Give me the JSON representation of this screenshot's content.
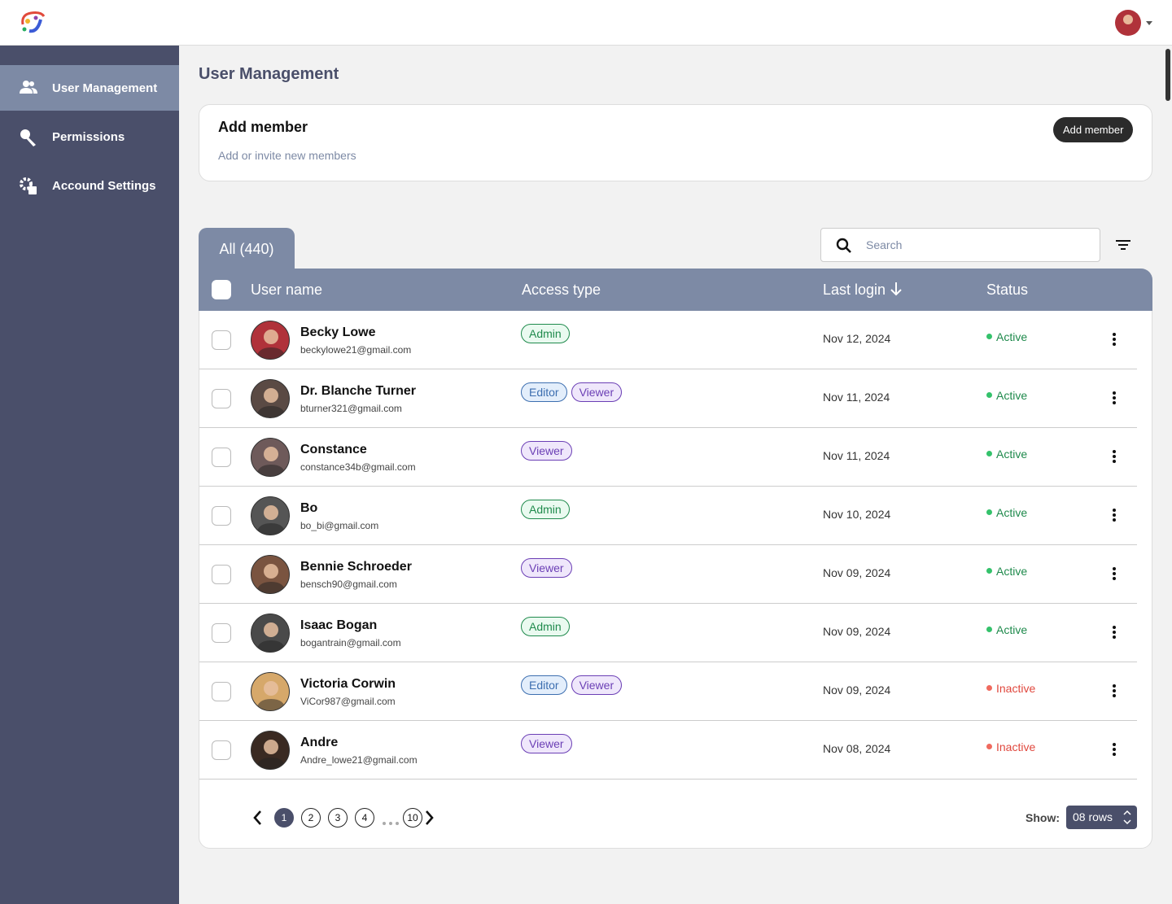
{
  "header": {
    "logo": "app-logo"
  },
  "nav": {
    "items": [
      {
        "label": "User Management",
        "active": true
      },
      {
        "label": "Permissions",
        "active": false
      },
      {
        "label": "Accound Settings",
        "active": false
      }
    ]
  },
  "page": {
    "title": "User Management"
  },
  "add_member": {
    "title": "Add member",
    "subtitle": "Add or invite new members",
    "button": "Add member"
  },
  "tab": {
    "label": "All (440)"
  },
  "search": {
    "placeholder": "Search"
  },
  "table": {
    "headers": [
      "User name",
      "Access type",
      "Last login",
      "Status"
    ],
    "rows": [
      {
        "name": "Becky Lowe",
        "email": "beckylowe21@gmail.com",
        "avatar_color": "#b0323a",
        "roles": [
          {
            "label": "Admin",
            "color": "#1f8a4c",
            "bg": "#eafaf0"
          }
        ],
        "last_login": "Nov 12, 2024",
        "status": "Active",
        "status_color": "#1f8a4c",
        "dot_color": "#34c26b"
      },
      {
        "name": "Dr. Blanche Turner",
        "email": "bturner321@gmail.com",
        "avatar_color": "#5a4a44",
        "roles": [
          {
            "label": "Editor",
            "color": "#3d6fb0",
            "bg": "#e3eefb"
          },
          {
            "label": "Viewer",
            "color": "#6b3fb5",
            "bg": "#efe7fb"
          }
        ],
        "last_login": "Nov 11, 2024",
        "status": "Active",
        "status_color": "#1f8a4c",
        "dot_color": "#34c26b"
      },
      {
        "name": "Constance",
        "email": "constance34b@gmail.com",
        "avatar_color": "#6e5a5a",
        "roles": [
          {
            "label": "Viewer",
            "color": "#6b3fb5",
            "bg": "#efe7fb"
          }
        ],
        "last_login": "Nov 11, 2024",
        "status": "Active",
        "status_color": "#1f8a4c",
        "dot_color": "#34c26b"
      },
      {
        "name": "Bo",
        "email": "bo_bi@gmail.com",
        "avatar_color": "#555555",
        "roles": [
          {
            "label": "Admin",
            "color": "#1f8a4c",
            "bg": "#eafaf0"
          }
        ],
        "last_login": "Nov 10, 2024",
        "status": "Active",
        "status_color": "#1f8a4c",
        "dot_color": "#34c26b"
      },
      {
        "name": "Bennie Schroeder",
        "email": "bensch90@gmail.com",
        "avatar_color": "#7a5440",
        "roles": [
          {
            "label": "Viewer",
            "color": "#6b3fb5",
            "bg": "#efe7fb"
          }
        ],
        "last_login": "Nov 09, 2024",
        "status": "Active",
        "status_color": "#1f8a4c",
        "dot_color": "#34c26b"
      },
      {
        "name": "Isaac Bogan",
        "email": "bogantrain@gmail.com",
        "avatar_color": "#4a4a4a",
        "roles": [
          {
            "label": "Admin",
            "color": "#1f8a4c",
            "bg": "#eafaf0"
          }
        ],
        "last_login": "Nov 09, 2024",
        "status": "Active",
        "status_color": "#1f8a4c",
        "dot_color": "#34c26b"
      },
      {
        "name": "Victoria Corwin",
        "email": "ViCor987@gmail.com",
        "avatar_color": "#d6a86a",
        "roles": [
          {
            "label": "Editor",
            "color": "#3d6fb0",
            "bg": "#e3eefb"
          },
          {
            "label": "Viewer",
            "color": "#6b3fb5",
            "bg": "#efe7fb"
          }
        ],
        "last_login": "Nov 09, 2024",
        "status": "Inactive",
        "status_color": "#e0483e",
        "dot_color": "#f06a5e"
      },
      {
        "name": "Andre",
        "email": "Andre_lowe21@gmail.com",
        "avatar_color": "#3a2a22",
        "roles": [
          {
            "label": "Viewer",
            "color": "#6b3fb5",
            "bg": "#efe7fb"
          }
        ],
        "last_login": "Nov 08, 2024",
        "status": "Inactive",
        "status_color": "#e0483e",
        "dot_color": "#f06a5e"
      }
    ]
  },
  "pagination": {
    "pages": [
      "1",
      "2",
      "3",
      "4",
      "10"
    ],
    "current": "1",
    "show_label": "Show:",
    "rows_option": "08 rows"
  }
}
